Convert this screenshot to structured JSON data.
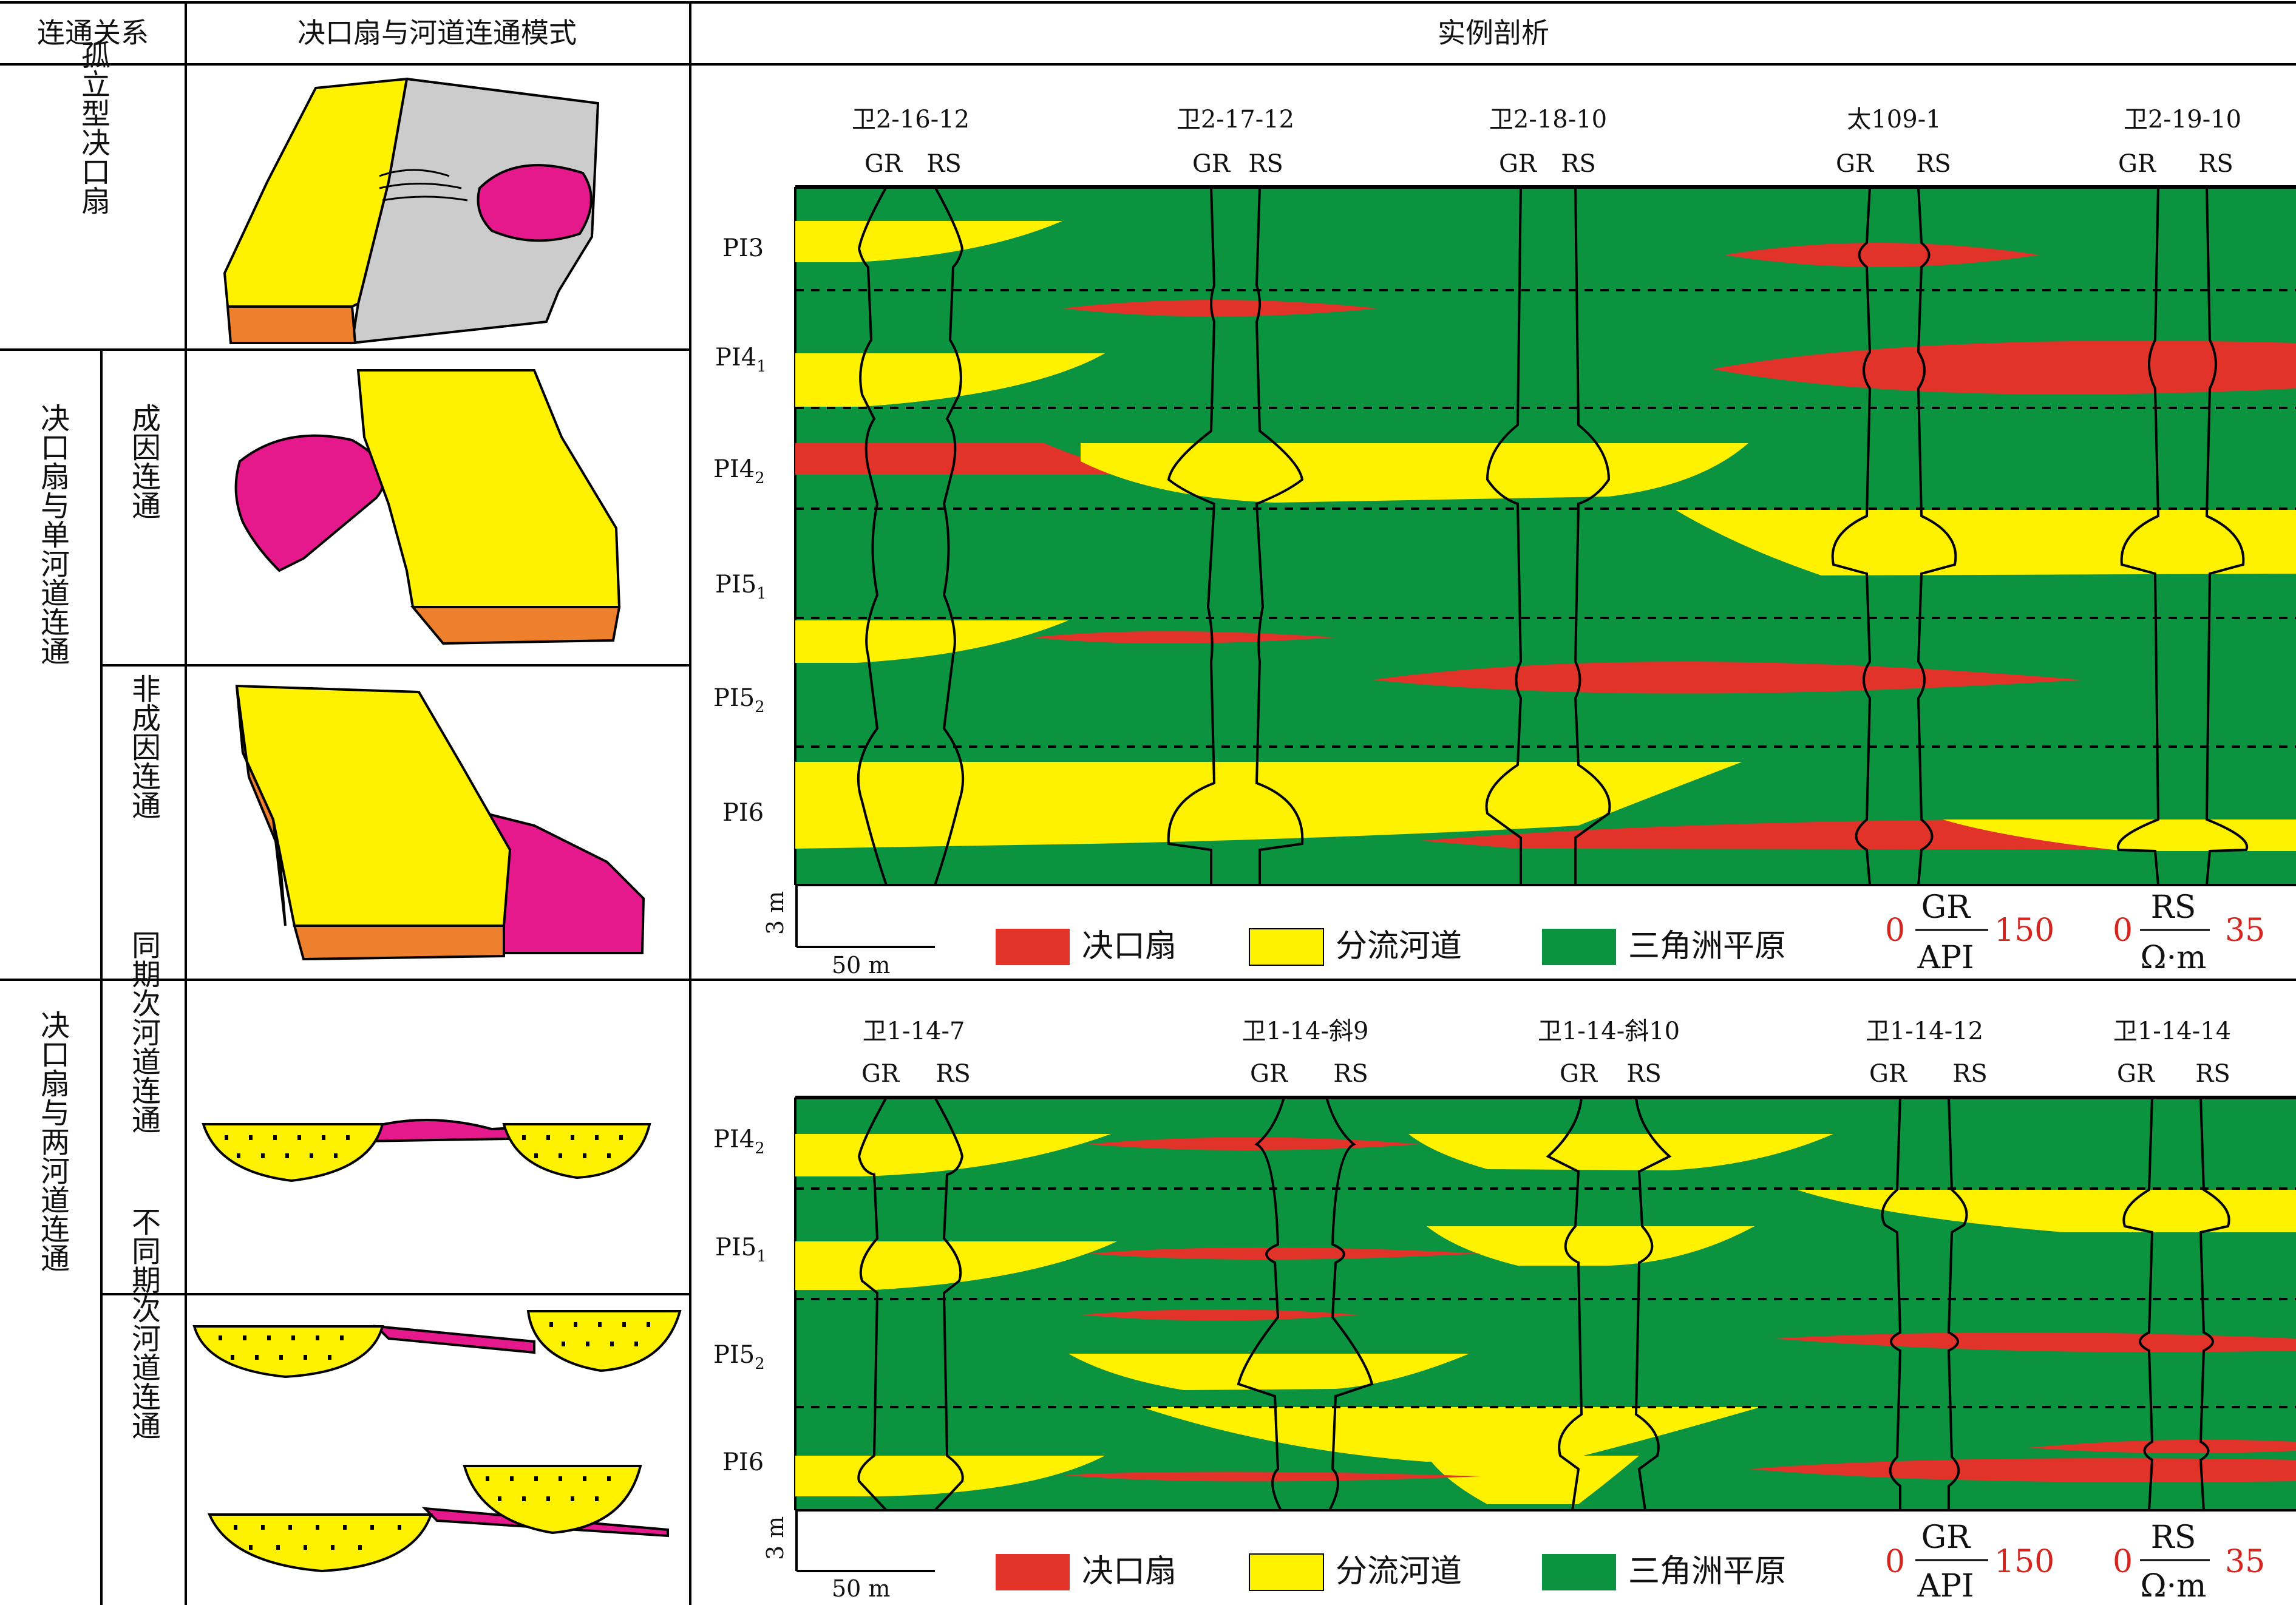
{
  "header": {
    "col1": "连通关系",
    "col2": "决口扇与河道连通模式",
    "col3": "实例剖析"
  },
  "rows": {
    "isolated": "孤立型决口扇",
    "single_channel": "决口扇与单河道连通",
    "genetic": "成因连通",
    "non_genetic": "非成因连通",
    "two_channel": "决口扇与两河道连通",
    "same_period": "同期次河道连通",
    "diff_period": "不同期次河道连通"
  },
  "section_top": {
    "wells": [
      "卫2-16-12",
      "卫2-17-12",
      "卫2-18-10",
      "太109-1",
      "卫2-19-10"
    ],
    "layers": [
      "PI3",
      "PI4",
      "1",
      "PI4",
      "2",
      "PI5",
      "1",
      "PI5",
      "2",
      "PI6"
    ]
  },
  "section_bottom": {
    "wells": [
      "卫1-14-7",
      "卫1-14-斜9",
      "卫1-14-斜10",
      "卫1-14-12",
      "卫1-14-14"
    ],
    "layers": [
      "PI4",
      "2",
      "PI5",
      "1",
      "PI5",
      "2",
      "PI6"
    ]
  },
  "curve_labels": {
    "gr": "GR",
    "rs": "RS"
  },
  "legend": {
    "crevasse": "决口扇",
    "channel": "分流河道",
    "delta_plain": "三角洲平原"
  },
  "scale": {
    "vertical": "3 m",
    "horizontal": "50 m"
  },
  "gr_scale": {
    "min": "0",
    "max": "150",
    "unit": "API"
  },
  "rs_scale": {
    "min": "0",
    "max": "35",
    "unit": "Ω·m"
  },
  "colors": {
    "crevasse": "#e1332a",
    "channel": "#fff200",
    "delta_plain": "#0b9340",
    "magenta": "#e6198c",
    "orange": "#ee7f2d",
    "gray": "#cccccc"
  }
}
